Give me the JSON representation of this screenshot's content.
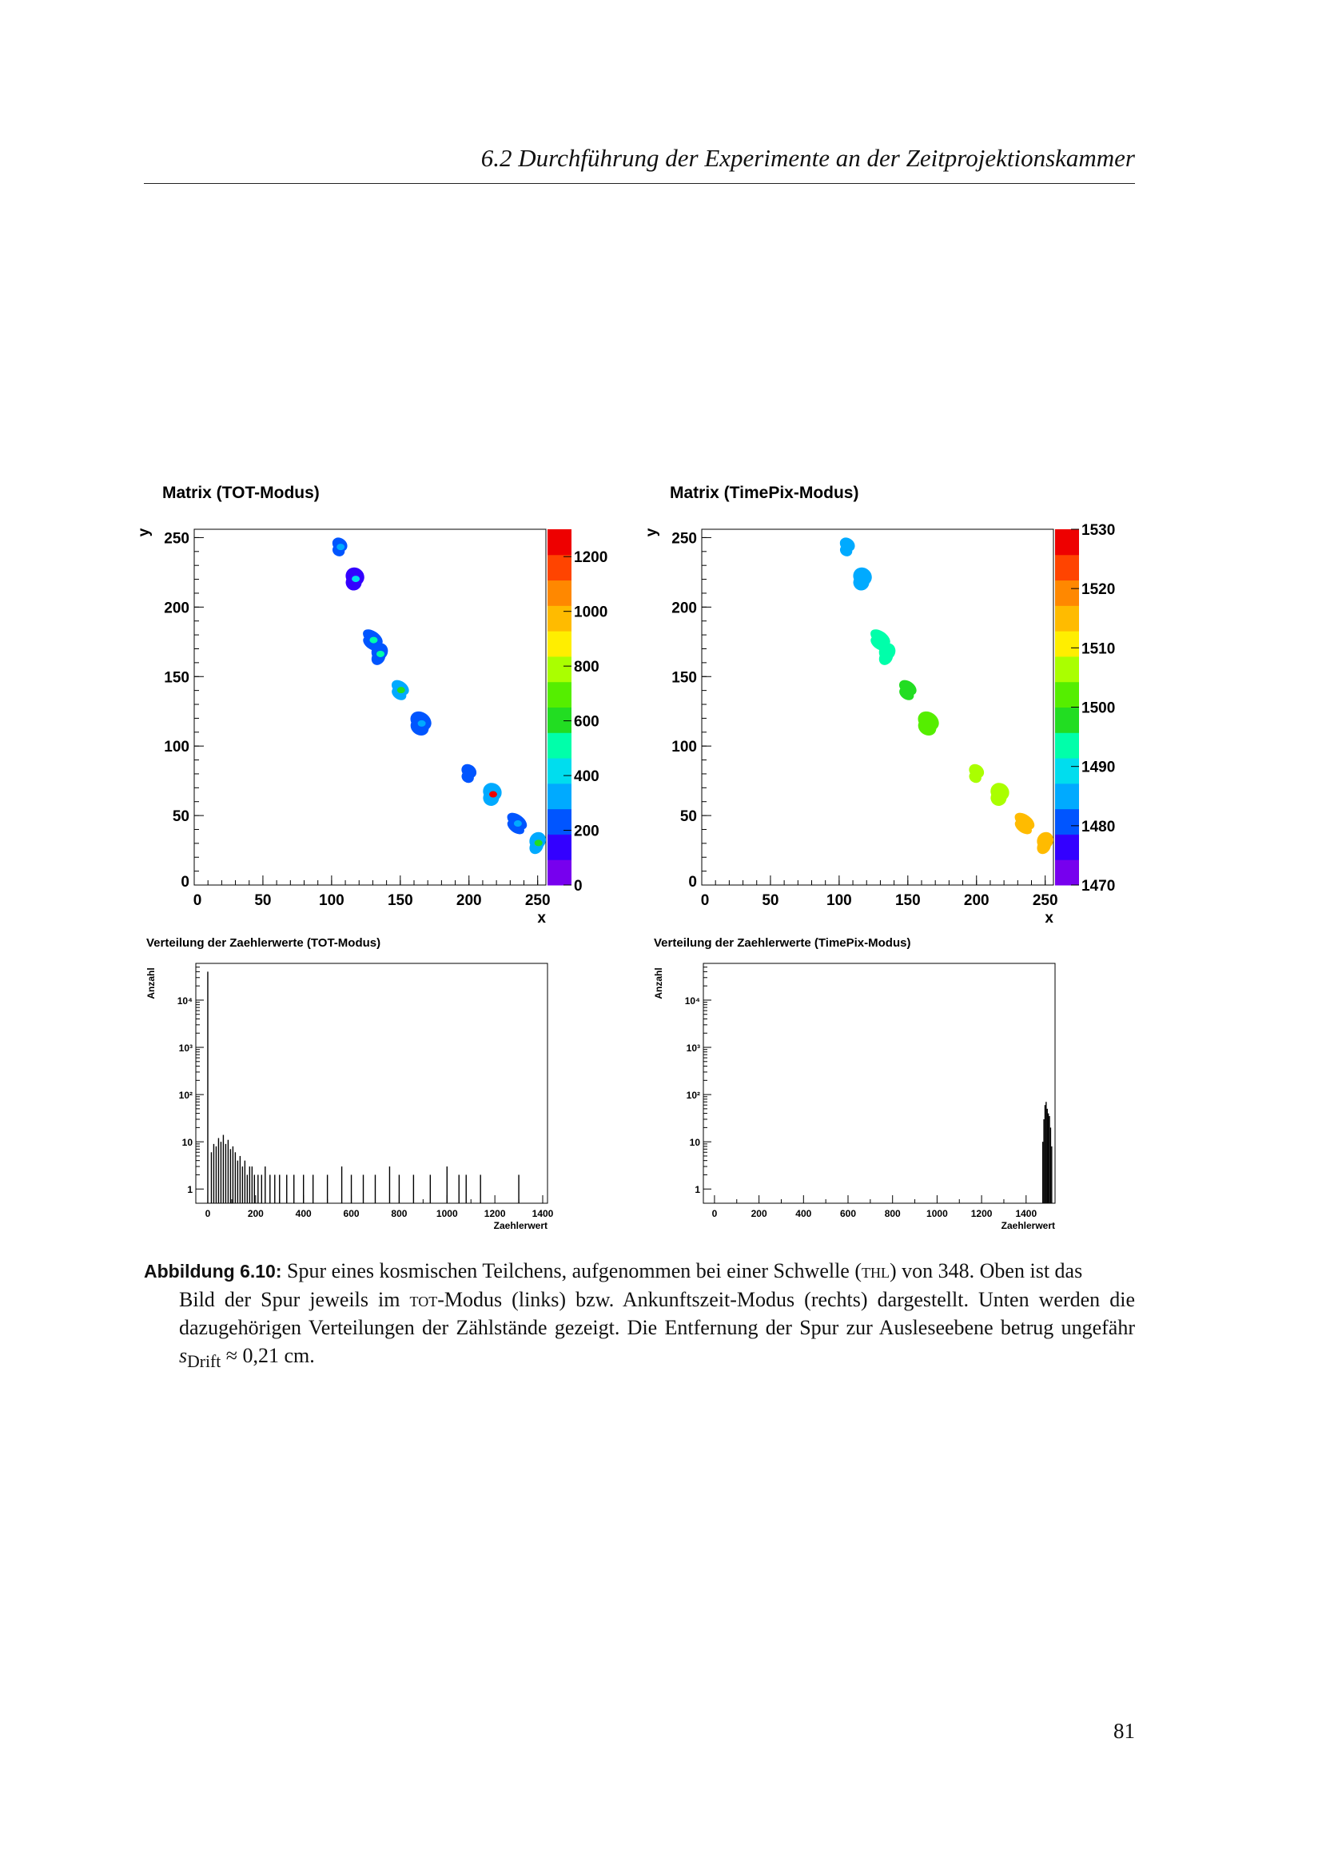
{
  "running_head": "6.2  Durchführung der Experimente an der Zeitprojektionskammer",
  "page_number": "81",
  "caption": {
    "label": "Abbildung 6.10:",
    "line1": "Spur eines kosmischen Teilchens, aufgenommen bei einer Schwelle (",
    "thl": "THL",
    "line1b": ") von 348. Oben ist das",
    "line2a": "Bild der Spur jeweils im ",
    "tot": "TOT",
    "line2b": "-Modus (links) bzw. Ankunftszeit-Modus (rechts) dargestellt. Unten werden die dazugehörigen Verteilungen der Zählstände gezeigt. Die Entfernung der Spur zur Ausleseebene betrug ungefähr ",
    "sdrift_s": "s",
    "sdrift_sub": "Drift",
    "line2c": " ≈ 0,21 cm."
  },
  "colors": {
    "palette": [
      "#7700ee",
      "#3300ff",
      "#0055ff",
      "#00aaff",
      "#00ddee",
      "#00ffaa",
      "#22dd22",
      "#55ee00",
      "#aaff00",
      "#ffee00",
      "#ffbb00",
      "#ff8800",
      "#ff4400",
      "#ee0000"
    ]
  },
  "chart_data": [
    {
      "type": "heatmap",
      "title": "Matrix (TOT-Modus)",
      "xlabel": "x",
      "ylabel": "y",
      "xlim": [
        0,
        256
      ],
      "ylim": [
        0,
        256
      ],
      "xticks": [
        "0",
        "50",
        "100",
        "150",
        "200",
        "250"
      ],
      "yticks": [
        "0",
        "50",
        "100",
        "150",
        "200",
        "250"
      ],
      "zlim": [
        0,
        1300
      ],
      "zticks": [
        "0",
        "200",
        "400",
        "600",
        "800",
        "1000",
        "1200"
      ],
      "clusters": [
        {
          "x": 106,
          "y": 245,
          "z": 220,
          "peak": 330
        },
        {
          "x": 117,
          "y": 222,
          "z": 180,
          "peak": 430
        },
        {
          "x": 130,
          "y": 178,
          "z": 260,
          "peak": 520
        },
        {
          "x": 135,
          "y": 168,
          "z": 230,
          "peak": 480
        },
        {
          "x": 150,
          "y": 142,
          "z": 300,
          "peak": 560
        },
        {
          "x": 165,
          "y": 118,
          "z": 200,
          "peak": 300
        },
        {
          "x": 200,
          "y": 82,
          "z": 190,
          "peak": 260
        },
        {
          "x": 217,
          "y": 67,
          "z": 300,
          "peak": 1250
        },
        {
          "x": 235,
          "y": 46,
          "z": 200,
          "peak": 300
        },
        {
          "x": 250,
          "y": 32,
          "z": 280,
          "peak": 560
        }
      ]
    },
    {
      "type": "heatmap",
      "title": "Matrix (TimePix-Modus)",
      "xlabel": "x",
      "ylabel": "y",
      "xlim": [
        0,
        256
      ],
      "ylim": [
        0,
        256
      ],
      "xticks": [
        "0",
        "50",
        "100",
        "150",
        "200",
        "250"
      ],
      "yticks": [
        "0",
        "50",
        "100",
        "150",
        "200",
        "250"
      ],
      "zlim": [
        1470,
        1530
      ],
      "zticks": [
        "1470",
        "1480",
        "1490",
        "1500",
        "1510",
        "1520",
        "1530"
      ],
      "clusters": [
        {
          "x": 106,
          "y": 245,
          "z": 1485
        },
        {
          "x": 117,
          "y": 222,
          "z": 1487
        },
        {
          "x": 130,
          "y": 178,
          "z": 1493
        },
        {
          "x": 135,
          "y": 168,
          "z": 1495
        },
        {
          "x": 150,
          "y": 142,
          "z": 1499
        },
        {
          "x": 165,
          "y": 118,
          "z": 1501
        },
        {
          "x": 200,
          "y": 82,
          "z": 1505
        },
        {
          "x": 217,
          "y": 67,
          "z": 1508
        },
        {
          "x": 235,
          "y": 46,
          "z": 1513
        },
        {
          "x": 250,
          "y": 32,
          "z": 1517
        }
      ]
    },
    {
      "type": "bar",
      "title": "Verteilung der Zaehlerwerte (TOT-Modus)",
      "xlabel": "Zaehlerwert",
      "ylabel": "Anzahl",
      "xlim": [
        -50,
        1420
      ],
      "ylim": [
        0.5,
        60000
      ],
      "yscale": "log",
      "xticks": [
        "0",
        "200",
        "400",
        "600",
        "800",
        "1000",
        "1200",
        "1400"
      ],
      "yticks": [
        "1",
        "10",
        "10²",
        "10³",
        "10⁴"
      ],
      "bins": [
        [
          0,
          40000
        ],
        [
          15,
          6
        ],
        [
          25,
          9
        ],
        [
          35,
          8
        ],
        [
          45,
          12
        ],
        [
          55,
          10
        ],
        [
          65,
          14
        ],
        [
          75,
          9
        ],
        [
          85,
          11
        ],
        [
          95,
          7
        ],
        [
          105,
          8
        ],
        [
          115,
          6
        ],
        [
          125,
          4
        ],
        [
          135,
          5
        ],
        [
          145,
          3
        ],
        [
          155,
          4
        ],
        [
          165,
          2
        ],
        [
          175,
          3
        ],
        [
          185,
          3
        ],
        [
          195,
          2
        ],
        [
          210,
          2
        ],
        [
          225,
          2
        ],
        [
          240,
          3
        ],
        [
          260,
          2
        ],
        [
          280,
          2
        ],
        [
          300,
          2
        ],
        [
          330,
          2
        ],
        [
          360,
          2
        ],
        [
          400,
          2
        ],
        [
          440,
          2
        ],
        [
          500,
          2
        ],
        [
          560,
          3
        ],
        [
          600,
          2
        ],
        [
          650,
          2
        ],
        [
          700,
          2
        ],
        [
          760,
          3
        ],
        [
          800,
          2
        ],
        [
          860,
          2
        ],
        [
          930,
          2
        ],
        [
          1000,
          3
        ],
        [
          1050,
          2
        ],
        [
          1080,
          2
        ],
        [
          1140,
          2
        ],
        [
          1300,
          2
        ]
      ]
    },
    {
      "type": "bar",
      "title": "Verteilung der Zaehlerwerte (TimePix-Modus)",
      "xlabel": "Zaehlerwert",
      "ylabel": "Anzahl",
      "xlim": [
        -50,
        1530
      ],
      "ylim": [
        0.5,
        60000
      ],
      "yscale": "log",
      "xticks": [
        "0",
        "200",
        "400",
        "600",
        "800",
        "1000",
        "1200",
        "1400"
      ],
      "yticks": [
        "1",
        "10",
        "10²",
        "10³",
        "10⁴"
      ],
      "bins": [
        [
          1475,
          10
        ],
        [
          1480,
          30
        ],
        [
          1485,
          60
        ],
        [
          1490,
          70
        ],
        [
          1495,
          50
        ],
        [
          1500,
          40
        ],
        [
          1505,
          35
        ],
        [
          1510,
          20
        ],
        [
          1515,
          8
        ]
      ]
    }
  ]
}
